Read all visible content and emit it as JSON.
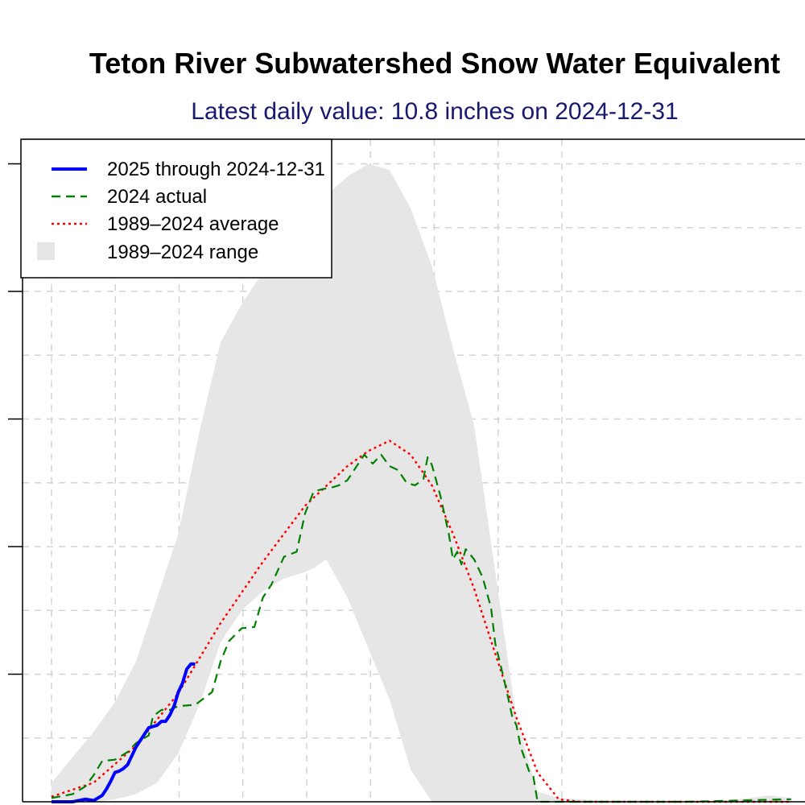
{
  "title": "Teton River Subwatershed Snow Water Equivalent",
  "subtitle": "Latest daily value: 10.8 inches on 2024-12-31",
  "legend": [
    {
      "label": "2025 through 2024-12-31",
      "color": "#0000ff",
      "style": "solid"
    },
    {
      "label": "2024 actual",
      "color": "#008000",
      "style": "dashed"
    },
    {
      "label": "1989–2024 average",
      "color": "#ff0000",
      "style": "dotted"
    },
    {
      "label": "1989–2024 range",
      "color": "#e6e6e6",
      "style": "fill"
    }
  ],
  "chart_data": {
    "type": "line",
    "grid": true,
    "legend_position": "top-left",
    "ylim": [
      0,
      50
    ],
    "series": [
      {
        "name": "2025 through 2024-12-31",
        "color": "#0000ff",
        "points": [
          [
            0,
            0
          ],
          [
            5,
            0
          ],
          [
            8,
            0.2
          ],
          [
            10,
            0.1
          ],
          [
            12,
            0.5
          ],
          [
            13,
            1
          ],
          [
            14,
            1.6
          ],
          [
            15,
            2.3
          ],
          [
            16,
            2.4
          ],
          [
            17,
            2.6
          ],
          [
            18,
            2.9
          ],
          [
            19,
            3.6
          ],
          [
            20,
            4.3
          ],
          [
            21,
            4.8
          ],
          [
            22,
            5.3
          ],
          [
            23,
            5.8
          ],
          [
            24,
            5.9
          ],
          [
            25,
            6.0
          ],
          [
            26,
            6.3
          ],
          [
            27,
            6.3
          ],
          [
            28,
            6.8
          ],
          [
            29,
            7.5
          ],
          [
            30,
            8.6
          ],
          [
            31,
            9.3
          ],
          [
            32,
            10.4
          ],
          [
            33,
            10.8
          ],
          [
            34,
            10.8
          ]
        ]
      },
      {
        "name": "2024 actual",
        "color": "#008000",
        "points": [
          [
            0,
            0.3
          ],
          [
            5,
            0.6
          ],
          [
            8,
            1.2
          ],
          [
            10,
            2.1
          ],
          [
            12,
            3.2
          ],
          [
            15,
            3.3
          ],
          [
            18,
            3.9
          ],
          [
            20,
            4.6
          ],
          [
            23,
            5.2
          ],
          [
            24,
            6.7
          ],
          [
            26,
            7.2
          ],
          [
            28,
            7.2
          ],
          [
            30,
            7.5
          ],
          [
            34,
            7.6
          ],
          [
            38,
            8.6
          ],
          [
            40,
            11
          ],
          [
            42,
            12.6
          ],
          [
            45,
            13.6
          ],
          [
            48,
            13.7
          ],
          [
            50,
            16
          ],
          [
            52,
            17
          ],
          [
            55,
            19.2
          ],
          [
            58,
            19.6
          ],
          [
            60,
            22.6
          ],
          [
            62,
            24.3
          ],
          [
            64,
            24.5
          ],
          [
            66,
            24.6
          ],
          [
            68,
            24.8
          ],
          [
            70,
            25.2
          ],
          [
            72,
            26.2
          ],
          [
            74,
            27.2
          ],
          [
            76,
            26.5
          ],
          [
            78,
            27.2
          ],
          [
            80,
            26.3
          ],
          [
            82,
            26
          ],
          [
            84,
            25
          ],
          [
            86,
            24.8
          ],
          [
            88,
            25.3
          ],
          [
            89,
            27
          ],
          [
            90,
            26.4
          ],
          [
            92,
            24
          ],
          [
            94,
            21
          ],
          [
            95,
            19
          ],
          [
            96,
            19.6
          ],
          [
            97,
            18.6
          ],
          [
            98,
            19.8
          ],
          [
            100,
            19
          ],
          [
            102,
            17.6
          ],
          [
            104,
            15.2
          ],
          [
            105,
            12.4
          ],
          [
            107,
            9.7
          ],
          [
            109,
            6.7
          ],
          [
            110,
            6
          ],
          [
            111,
            4.3
          ],
          [
            113,
            2.4
          ],
          [
            114,
            2.0
          ],
          [
            115,
            0
          ],
          [
            120,
            0
          ],
          [
            150,
            0
          ],
          [
            175,
            0.2
          ]
        ]
      },
      {
        "name": "1989–2024 average",
        "color": "#ff0000",
        "points": [
          [
            0,
            0.4
          ],
          [
            10,
            1.5
          ],
          [
            20,
            4.4
          ],
          [
            30,
            8.5
          ],
          [
            40,
            14
          ],
          [
            50,
            18.8
          ],
          [
            60,
            23.2
          ],
          [
            70,
            26.3
          ],
          [
            75,
            27.5
          ],
          [
            80,
            28.3
          ],
          [
            85,
            27.2
          ],
          [
            90,
            24.8
          ],
          [
            95,
            21
          ],
          [
            100,
            16.7
          ],
          [
            105,
            11.6
          ],
          [
            110,
            6.6
          ],
          [
            115,
            2.3
          ],
          [
            120,
            0.2
          ],
          [
            125,
            0
          ],
          [
            175,
            0
          ]
        ]
      }
    ],
    "range": {
      "name": "1989–2024 range",
      "color": "#e6e6e6",
      "x": [
        0,
        5,
        10,
        15,
        20,
        25,
        30,
        35,
        40,
        45,
        50,
        55,
        60,
        62,
        65,
        70,
        75,
        80,
        85,
        90,
        95,
        100,
        105,
        110,
        115,
        120,
        125,
        130,
        135,
        140,
        145,
        150,
        155,
        160,
        165,
        170,
        175
      ],
      "upper": [
        1.5,
        3.5,
        5.5,
        7.8,
        11,
        16,
        21,
        29,
        36,
        39,
        41.5,
        43.5,
        45.8,
        46.5,
        47.5,
        49,
        50,
        49.5,
        46.5,
        42,
        35.5,
        29.5,
        18,
        6.5,
        0.8,
        0.3,
        0.2,
        0.1,
        0.1,
        0.1,
        0.1,
        0.1,
        0.1,
        0.1,
        0.3,
        0.5,
        0.3
      ],
      "lower": [
        0,
        0,
        0,
        0.2,
        0.6,
        1.5,
        3.8,
        7.6,
        12.5,
        15,
        16.5,
        17.5,
        18,
        18.3,
        19,
        16,
        12,
        8,
        2.5,
        0,
        0,
        0,
        0,
        0,
        0,
        0,
        0,
        0,
        0,
        0,
        0,
        0,
        0,
        0,
        0,
        0,
        0
      ]
    }
  }
}
